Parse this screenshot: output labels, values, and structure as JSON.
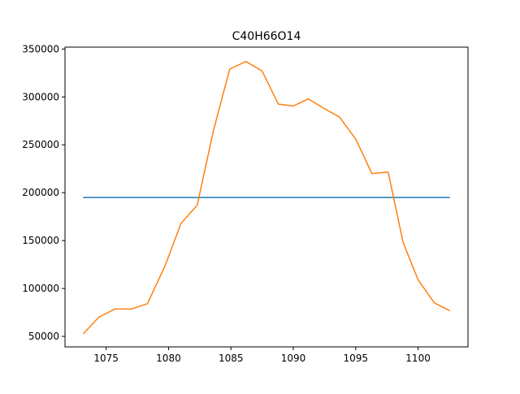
{
  "chart_data": {
    "type": "line",
    "title": "C40H66O14",
    "xlabel": "",
    "ylabel": "",
    "xlim": [
      1071.7,
      1104.0
    ],
    "ylim": [
      39000,
      352000
    ],
    "xticks": [
      1075,
      1080,
      1085,
      1090,
      1095,
      1100
    ],
    "yticks": [
      50000,
      100000,
      150000,
      200000,
      250000,
      300000,
      350000
    ],
    "grid": false,
    "legend": "none",
    "series": [
      {
        "color": "#1f77b4",
        "x": [
          1073.2,
          1102.5
        ],
        "y": [
          195000,
          195000
        ]
      },
      {
        "color": "#ff7f0e",
        "x": [
          1073.2,
          1074.4,
          1075.7,
          1077.0,
          1078.3,
          1079.7,
          1081.0,
          1082.3,
          1083.6,
          1084.9,
          1086.2,
          1087.5,
          1088.8,
          1090.0,
          1091.2,
          1092.4,
          1093.7,
          1095.0,
          1096.3,
          1097.6,
          1098.8,
          1100.0,
          1101.3,
          1102.5
        ],
        "y": [
          53000,
          70000,
          78500,
          78500,
          84000,
          123000,
          168000,
          187000,
          265000,
          329000,
          337000,
          327000,
          292500,
          290500,
          298000,
          288500,
          279000,
          256000,
          220000,
          221500,
          148000,
          109000,
          85000,
          77000
        ]
      }
    ]
  }
}
